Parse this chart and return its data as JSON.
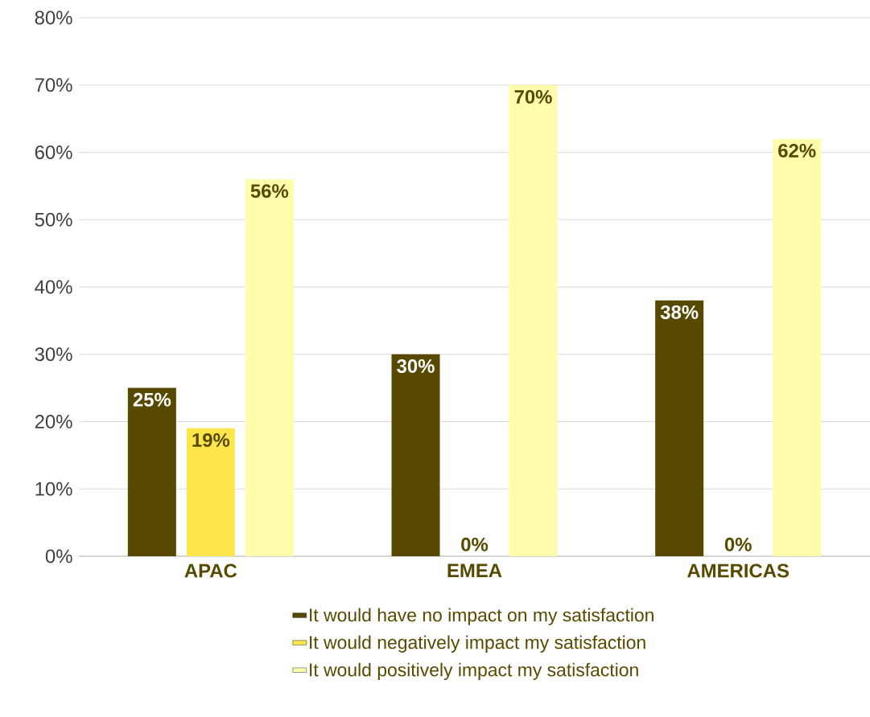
{
  "chart_data": {
    "type": "bar",
    "categories": [
      "APAC",
      "EMEA",
      "AMERICAS"
    ],
    "series": [
      {
        "name": "It would have no impact on my satisfaction",
        "color": "#574a00",
        "values": [
          25,
          30,
          38
        ],
        "value_labels": [
          "25%",
          "30%",
          "38%"
        ]
      },
      {
        "name": "It would negatively impact my satisfaction",
        "color": "#fde64b",
        "values": [
          19,
          0,
          0
        ],
        "value_labels": [
          "19%",
          "0%",
          "0%"
        ]
      },
      {
        "name": "It would positively impact my satisfaction",
        "color": "#fffcab",
        "values": [
          56,
          70,
          62
        ],
        "value_labels": [
          "56%",
          "70%",
          "62%"
        ]
      }
    ],
    "ylim": [
      0,
      80
    ],
    "yticks": [
      {
        "value": 0,
        "label": "0%"
      },
      {
        "value": 10,
        "label": "10%"
      },
      {
        "value": 20,
        "label": "20%"
      },
      {
        "value": 30,
        "label": "30%"
      },
      {
        "value": 40,
        "label": "40%"
      },
      {
        "value": 50,
        "label": "50%"
      },
      {
        "value": 60,
        "label": "60%"
      },
      {
        "value": 70,
        "label": "70%"
      },
      {
        "value": 80,
        "label": "80%"
      }
    ],
    "grid": "y",
    "legend": "bottom"
  }
}
